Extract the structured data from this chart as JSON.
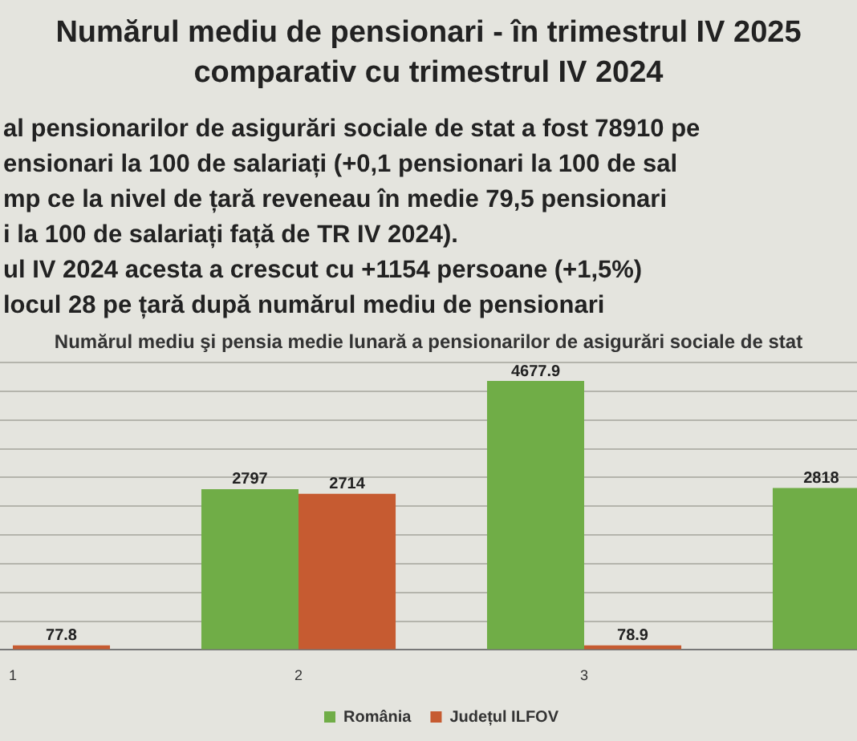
{
  "chart_data": {
    "type": "bar",
    "title": "Numărul mediu de pensionari - în trimestrul IV 2025 comparativ cu trimestrul IV 2024",
    "subtitle": "Numărul mediu şi pensia medie lunară a pensionarilor de asigurări sociale de stat",
    "annotations": [
      "al pensionarilor de asigurări sociale de stat a fost 78910 pe",
      "ensionari la 100 de salariați (+0,1 pensionari la 100 de sal",
      "mp ce la nivel de țară reveneau în medie 79,5 pensionari",
      "i la 100 de salariați față de TR IV 2024).",
      "ul IV 2024 acesta a crescut cu +1154 persoane (+1,5%)",
      "locul 28 pe țară după numărul mediu de pensionari"
    ],
    "categories": [
      "1",
      "2",
      "3",
      null
    ],
    "series": [
      {
        "name": "România",
        "color": "#70ad47",
        "values": [
          null,
          2797,
          4677.9,
          2818
        ]
      },
      {
        "name": "Județul ILFOV",
        "color": "#c65b31",
        "values": [
          77.8,
          2714,
          78.9,
          null
        ]
      }
    ],
    "tick_labels": "x",
    "grid": "y",
    "legend": "bottom",
    "data_labels": true
  }
}
